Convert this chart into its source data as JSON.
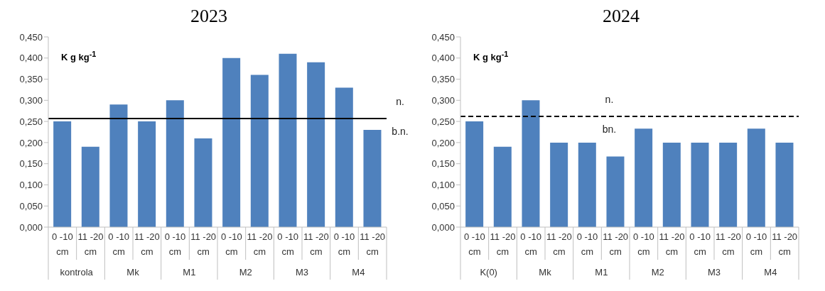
{
  "chart_data": [
    {
      "type": "bar",
      "title": "2023",
      "ylabel": "K g  kg$^{-1}$",
      "categories": [
        "0 -10 cm",
        "11 -20 cm",
        "0 -10 cm",
        "11 -20 cm",
        "0 -10 cm",
        "11 -20 cm",
        "0 -10 cm",
        "11 -20 cm",
        "0 -10 cm",
        "11 -20 cm",
        "0 -10 cm",
        "11 -20 cm"
      ],
      "values": [
        0.25,
        0.19,
        0.29,
        0.25,
        0.3,
        0.21,
        0.4,
        0.36,
        0.41,
        0.39,
        0.33,
        0.23
      ],
      "color": "#4f81bd",
      "ylim": [
        0,
        0.45
      ],
      "yticks": [
        {
          "value": 0,
          "label": "0,000"
        },
        {
          "value": 0.05,
          "label": "0,050"
        },
        {
          "value": 0.1,
          "label": "0,100"
        },
        {
          "value": 0.15,
          "label": "0,150"
        },
        {
          "value": 0.2,
          "label": "0,200"
        },
        {
          "value": 0.25,
          "label": "0,250"
        },
        {
          "value": 0.3,
          "label": "0,300"
        },
        {
          "value": 0.35,
          "label": "0,350"
        },
        {
          "value": 0.4,
          "label": "0,400"
        },
        {
          "value": 0.45,
          "label": "0,450"
        }
      ],
      "ref_lines": [
        {
          "axis": "y",
          "value": 0.257,
          "color": "#000000",
          "line_style": "solid"
        }
      ],
      "annotations": [
        "n.",
        "b.n.",
        "kontrola",
        "Mk",
        "M1",
        "M2",
        "M3",
        "M4"
      ],
      "grid": false,
      "legend": false
    },
    {
      "type": "bar",
      "title": "2024",
      "ylabel": "K g  kg$^{-1}$",
      "categories": [
        "0 -10 cm",
        "11 -20 cm",
        "0 -10 cm",
        "11 -20 cm",
        "0 -10 cm",
        "11 -20 cm",
        "0 -10 cm",
        "11 -20 cm",
        "0 -10 cm",
        "11 -20 cm",
        "0 -10 cm",
        "11 -20 cm"
      ],
      "values": [
        0.25,
        0.19,
        0.3,
        0.2,
        0.2,
        0.167,
        0.233,
        0.2,
        0.2,
        0.2,
        0.233,
        0.2
      ],
      "color": "#4f81bd",
      "ylim": [
        0,
        0.45
      ],
      "yticks": [
        {
          "value": 0,
          "label": "0,000"
        },
        {
          "value": 0.05,
          "label": "0,050"
        },
        {
          "value": 0.1,
          "label": "0,100"
        },
        {
          "value": 0.15,
          "label": "0,150"
        },
        {
          "value": 0.2,
          "label": "0,200"
        },
        {
          "value": 0.25,
          "label": "0,250"
        },
        {
          "value": 0.3,
          "label": "0,300"
        },
        {
          "value": 0.35,
          "label": "0,350"
        },
        {
          "value": 0.4,
          "label": "0,400"
        },
        {
          "value": 0.45,
          "label": "0,450"
        }
      ],
      "ref_lines": [
        {
          "axis": "y",
          "value": 0.262,
          "color": "#000000",
          "line_style": "dashed"
        }
      ],
      "annotations": [
        "n.",
        "bn.",
        "K(0)",
        "Mk",
        "M1",
        "M2",
        "M3",
        "M4"
      ],
      "grid": false,
      "legend": false
    }
  ]
}
